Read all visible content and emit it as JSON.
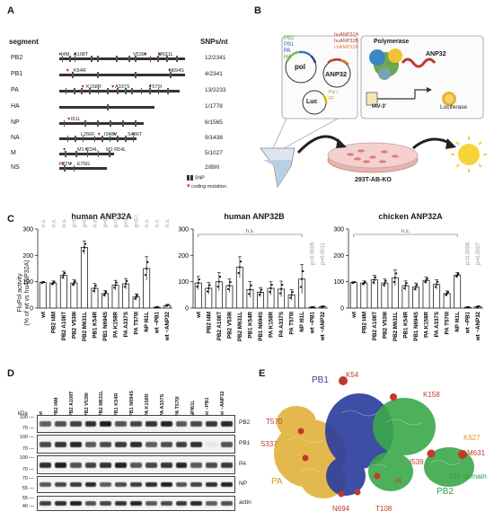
{
  "panels": {
    "a": "A",
    "b": "B",
    "c": "C",
    "d": "D",
    "e": "E"
  },
  "panelA": {
    "header_segment": "segment",
    "header_snps": "SNPs/nt",
    "segments": [
      {
        "name": "PB2",
        "snps": "12/2341",
        "length": 2341
      },
      {
        "name": "PB1",
        "snps": "4/2341",
        "length": 2341
      },
      {
        "name": "PA",
        "snps": "13/2233",
        "length": 2233
      },
      {
        "name": "HA",
        "snps": "1/1778",
        "length": 1778
      },
      {
        "name": "NP",
        "snps": "6/1565",
        "length": 1565
      },
      {
        "name": "NA",
        "snps": "9/1438",
        "length": 1438
      },
      {
        "name": "M",
        "snps": "5/1027",
        "length": 1027
      },
      {
        "name": "NS",
        "snps": "2/890",
        "length": 890
      }
    ],
    "mutations": {
      "pb2": [
        "I4M",
        "A108T",
        "V539I",
        "M631L"
      ],
      "pb1": [
        "K54R",
        "N694S"
      ],
      "pa": [
        "K158R",
        "A337S",
        "T570I"
      ],
      "np": [
        "I61L"
      ],
      "na": [
        "L256F",
        "I346V",
        "S466T"
      ],
      "m": [
        "M1 I234L",
        "M2 R54L"
      ],
      "ns": [
        "F22V",
        "E75G"
      ]
    },
    "legend_snp": "SNP",
    "legend_coding": "coding mutation"
  },
  "panelB": {
    "labels": {
      "pb2": "PB2",
      "pb1": "PB1",
      "pa": "PA",
      "ha": "HA",
      "pol": "pol",
      "anp32": "ANP32",
      "luc": "Luc",
      "pol_i": "Pol I",
      "ff": "FF",
      "hu_a": "huANP32A",
      "hu_b": "huANP32B",
      "ch_a": "chANP32A",
      "polymerase": "Polymerase",
      "anp32_big": "ANP32",
      "iav": "IAV-3'",
      "luciferase": "Luciferase",
      "cells": "293T-AB-KO"
    }
  },
  "panelC": {
    "ylabel": "FluPol activity\n(% of wt vs huANP32A)",
    "categories": [
      "wt",
      "PB2 I4M",
      "PB2 A108T",
      "PB2 V539I",
      "PB2 M631L",
      "PB1 K54R",
      "PB1 N694S",
      "PA K158R",
      "PA A337S",
      "PA T570I",
      "NP I61L",
      "wt −PB1",
      "wt −ANP32"
    ],
    "ns_label": "n.s.",
    "charts": [
      {
        "type": "bar",
        "title": "human ANP32A",
        "ylim": [
          0,
          300
        ],
        "yticks": [
          0,
          100,
          200,
          300
        ],
        "values": [
          97,
          95,
          125,
          95,
          230,
          75,
          55,
          87,
          92,
          42,
          150,
          3,
          10
        ],
        "errors": [
          3,
          8,
          15,
          12,
          25,
          18,
          12,
          18,
          20,
          12,
          45,
          2,
          4
        ],
        "pvalues": [
          "n.s.",
          "n.s.",
          "n.s.",
          "p=0.0001",
          "p=0.0466",
          "n.s.",
          "p=0.0033",
          "p=0.0137",
          "p<0.0001",
          "p<0.0001",
          "n.s.",
          "n.s.",
          "n.s."
        ]
      },
      {
        "type": "bar",
        "title": "human ANP32B",
        "ylim": [
          0,
          300
        ],
        "yticks": [
          0,
          100,
          200,
          300
        ],
        "values": [
          95,
          75,
          100,
          85,
          155,
          70,
          60,
          75,
          72,
          50,
          110,
          3,
          5
        ],
        "errors": [
          25,
          22,
          35,
          25,
          40,
          30,
          18,
          25,
          30,
          20,
          55,
          2,
          3
        ],
        "pvalues": [
          "p=0.0005",
          "p=0.0011"
        ]
      },
      {
        "type": "bar",
        "title": "chicken ANP32A",
        "ylim": [
          0,
          300
        ],
        "yticks": [
          0,
          100,
          200,
          300
        ],
        "values": [
          97,
          95,
          107,
          95,
          115,
          85,
          80,
          105,
          90,
          55,
          125,
          3,
          5
        ],
        "errors": [
          3,
          8,
          18,
          15,
          30,
          18,
          15,
          12,
          18,
          10,
          10,
          2,
          3
        ],
        "pvalues": [
          "p=0.0006",
          "p=0.0007"
        ]
      }
    ]
  },
  "panelD": {
    "kda": "kDa",
    "lanes": [
      "wt",
      "PB2 I4M",
      "PB2 A108T",
      "PB2 V539I",
      "PB2 M631L",
      "PB1 K54R",
      "PB1 N694S",
      "PA K158R",
      "PA A337S",
      "PA T570I",
      "NPI61L",
      "wt −PB1",
      "wt −ANP32"
    ],
    "rows": [
      {
        "name": "PB2",
        "marks": [
          "100",
          "70"
        ]
      },
      {
        "name": "PB1",
        "marks": [
          "100",
          "70"
        ]
      },
      {
        "name": "PA",
        "marks": [
          "100",
          "70"
        ]
      },
      {
        "name": "NP",
        "marks": [
          "70",
          "55"
        ]
      },
      {
        "name": "actin",
        "marks": [
          "55",
          "40"
        ]
      }
    ]
  },
  "panelE": {
    "labels": [
      "PB1",
      "K54",
      "K158",
      "T570",
      "S337",
      "K627",
      "M631",
      "I539",
      "I4",
      "N694",
      "T108",
      "PA",
      "PB2",
      "627 domain"
    ]
  }
}
